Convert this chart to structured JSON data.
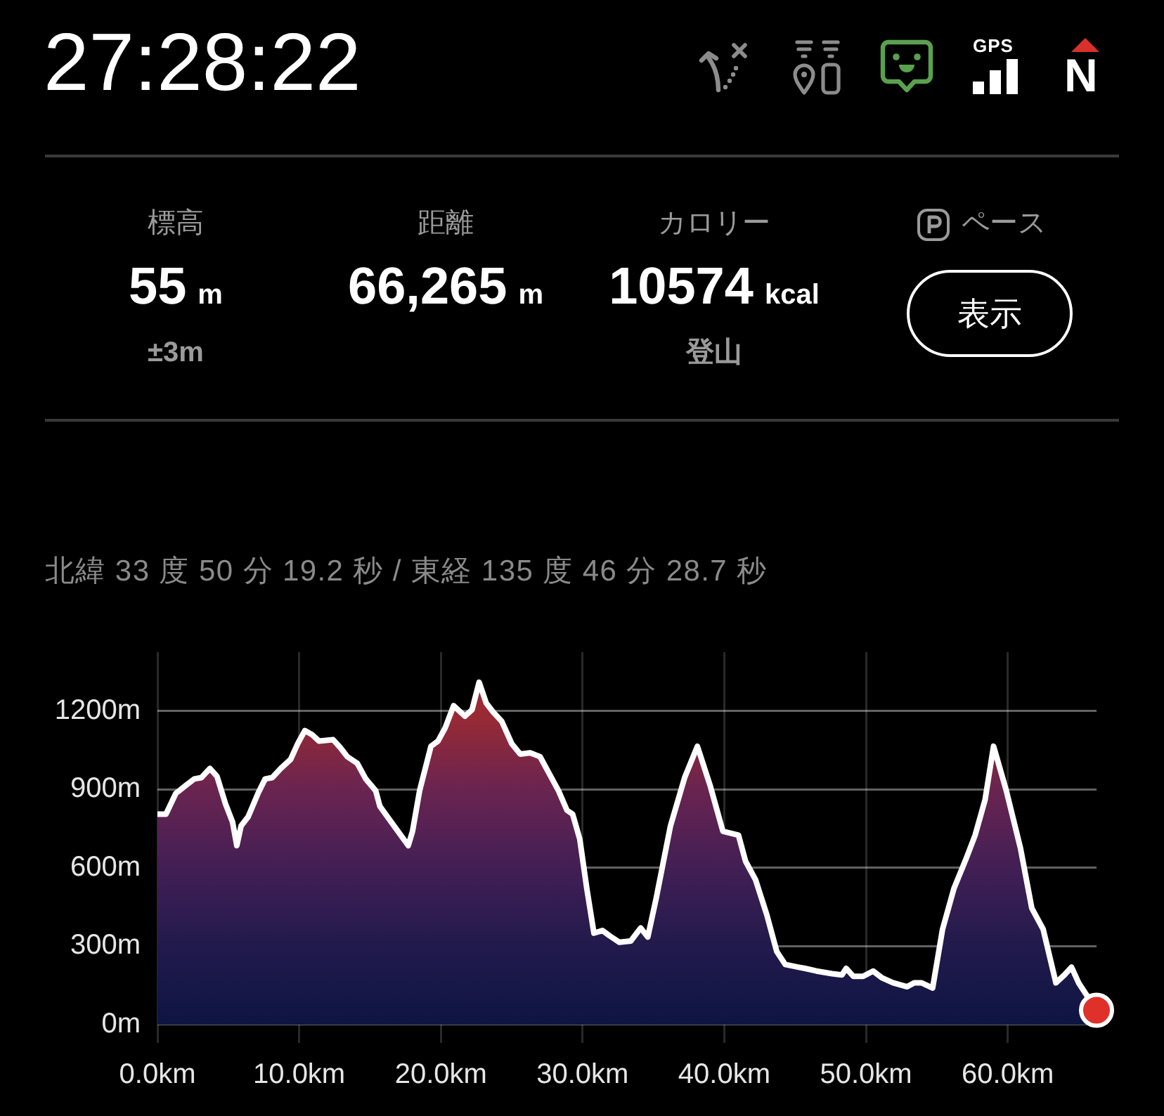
{
  "chart_data": {
    "type": "area",
    "subtitle": "北緯 33 度 50 分 19.2 秒 / 東経 135 度 46 分 28.7 秒",
    "annotations": [
      "27:28:22",
      "標高",
      "55",
      "m",
      "±3m",
      "距離",
      "66,265",
      "m",
      "カロリー",
      "10574",
      "kcal",
      "登山",
      "ペース",
      "表示",
      "GPS",
      "N"
    ],
    "series": [
      {
        "color": "#ffffff",
        "x": [
          0,
          0.6,
          1.3,
          2.0,
          2.6,
          3.1,
          3.7,
          4.2,
          4.8,
          5.3,
          5.6,
          5.9,
          6.4,
          7.1,
          7.6,
          8.1,
          8.7,
          9.4,
          9.9,
          10.4,
          10.9,
          11.4,
          12.4,
          12.9,
          13.4,
          14.1,
          14.7,
          15.4,
          15.7,
          16.7,
          17.7,
          18.0,
          18.5,
          19.3,
          19.8,
          20.3,
          20.9,
          21.7,
          22.2,
          22.7,
          23.2,
          23.7,
          24.3,
          25.0,
          25.6,
          26.3,
          27.0,
          27.6,
          28.3,
          28.9,
          29.3,
          29.8,
          30.3,
          30.8,
          31.4,
          31.9,
          32.6,
          33.4,
          34.1,
          34.6,
          35.2,
          36.2,
          37.2,
          38.1,
          39.0,
          39.9,
          41.0,
          41.5,
          42.2,
          43.0,
          43.7,
          44.3,
          45.2,
          45.7,
          46.5,
          47.6,
          48.3,
          48.6,
          49.1,
          49.8,
          50.5,
          51.1,
          51.9,
          52.9,
          53.4,
          53.9,
          54.7,
          55.4,
          56.2,
          57.1,
          57.7,
          58.4,
          59.0,
          59.9,
          60.9,
          61.7,
          62.5,
          63.4,
          64.0,
          64.5,
          65.0,
          66.265
        ],
        "values": [
          805,
          805,
          885,
          915,
          940,
          945,
          980,
          950,
          845,
          775,
          685,
          760,
          795,
          885,
          940,
          945,
          980,
          1015,
          1075,
          1125,
          1110,
          1085,
          1090,
          1060,
          1025,
          1000,
          940,
          895,
          835,
          760,
          685,
          740,
          895,
          1065,
          1085,
          1135,
          1220,
          1180,
          1205,
          1310,
          1230,
          1195,
          1160,
          1075,
          1035,
          1040,
          1025,
          965,
          895,
          820,
          805,
          710,
          520,
          350,
          360,
          340,
          315,
          320,
          370,
          335,
          485,
          760,
          945,
          1065,
          915,
          740,
          725,
          625,
          555,
          420,
          280,
          230,
          220,
          215,
          205,
          195,
          190,
          215,
          185,
          185,
          205,
          180,
          160,
          145,
          160,
          160,
          140,
          365,
          520,
          640,
          725,
          860,
          1065,
          895,
          675,
          445,
          365,
          160,
          190,
          220,
          160,
          55
        ]
      },
      {
        "type": "scatter",
        "color": "#e0302a",
        "marker": "circle",
        "x": [
          66.265
        ],
        "values": [
          55
        ]
      }
    ],
    "xlim": [
      0,
      66.265
    ],
    "ylim": [
      -70,
      1425
    ],
    "xticks": [
      {
        "value": 0,
        "label": "0.0km"
      },
      {
        "value": 10,
        "label": "10.0km"
      },
      {
        "value": 20,
        "label": "20.0km"
      },
      {
        "value": 30,
        "label": "30.0km"
      },
      {
        "value": 40,
        "label": "40.0km"
      },
      {
        "value": 50,
        "label": "50.0km"
      },
      {
        "value": 60,
        "label": "60.0km"
      }
    ],
    "yticks": [
      {
        "value": 0,
        "label": "0m"
      },
      {
        "value": 300,
        "label": "300m"
      },
      {
        "value": 600,
        "label": "600m"
      },
      {
        "value": 900,
        "label": "900m"
      },
      {
        "value": 1200,
        "label": "1200m"
      }
    ],
    "grid": true,
    "legend": false
  }
}
